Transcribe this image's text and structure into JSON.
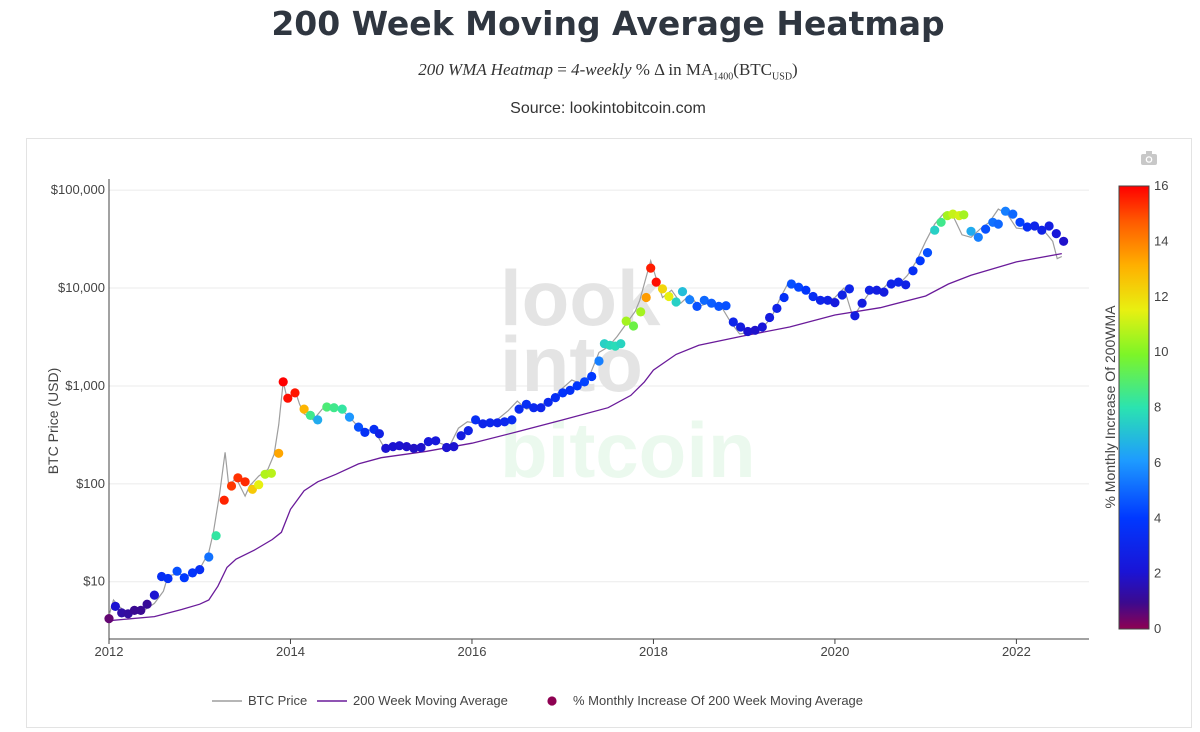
{
  "page": {
    "title": "200 Week Moving Average Heatmap",
    "formula": {
      "lhs": "200 WMA Heatmap",
      "eq": " = ",
      "rhs_italic": "4-weekly",
      "rhs_rest": " % Δ in MA",
      "sub1": "1400",
      "paren": "(BTC",
      "sub2": "USD",
      "close": ")"
    },
    "source": "Source: lookintobitcoin.com"
  },
  "toolbar": {
    "camera_label": "camera"
  },
  "watermark": {
    "line1": "look",
    "line2": "into",
    "line3": "bitcoin"
  },
  "colors": {
    "price": "#9e9e9e",
    "wma": "#6a1b9a",
    "grid": "#ebebeb",
    "axis": "#444444",
    "title": "#2f3640"
  },
  "chart_data": {
    "type": "scatter",
    "yscale": "log",
    "xlim": [
      2012.0,
      2022.8
    ],
    "ylim": [
      2.6,
      130000
    ],
    "ylabel": "BTC Price (USD)",
    "colorbar_title": "% Monthly Increase Of 200WMA",
    "colorbar_range": [
      0,
      16
    ],
    "colorbar_ticks": [
      "0",
      "2",
      "4",
      "6",
      "8",
      "10",
      "12",
      "14",
      "16"
    ],
    "x_ticks": [
      {
        "v": 2012,
        "label": "2012"
      },
      {
        "v": 2014,
        "label": "2014"
      },
      {
        "v": 2016,
        "label": "2016"
      },
      {
        "v": 2018,
        "label": "2018"
      },
      {
        "v": 2020,
        "label": "2020"
      },
      {
        "v": 2022,
        "label": "2022"
      }
    ],
    "y_ticks": [
      {
        "v": 10,
        "label": "$10"
      },
      {
        "v": 100,
        "label": "$100"
      },
      {
        "v": 1000,
        "label": "$1,000"
      },
      {
        "v": 10000,
        "label": "$10,000"
      },
      {
        "v": 100000,
        "label": "$100,000"
      }
    ],
    "legend": [
      {
        "name": "BTC Price",
        "kind": "line-gray"
      },
      {
        "name": "200 Week Moving Average",
        "kind": "line-purple"
      },
      {
        "name": "% Monthly Increase Of 200 Week Moving Average",
        "kind": "marker"
      }
    ],
    "btc_price": [
      [
        2012.0,
        4.5
      ],
      [
        2012.05,
        6.5
      ],
      [
        2012.1,
        5.7
      ],
      [
        2012.2,
        4.8
      ],
      [
        2012.3,
        4.9
      ],
      [
        2012.4,
        5.2
      ],
      [
        2012.5,
        6.0
      ],
      [
        2012.6,
        8.0
      ],
      [
        2012.65,
        11.5
      ],
      [
        2012.75,
        12
      ],
      [
        2012.9,
        11.5
      ],
      [
        2013.0,
        13.5
      ],
      [
        2013.1,
        20
      ],
      [
        2013.15,
        32
      ],
      [
        2013.22,
        80
      ],
      [
        2013.28,
        210
      ],
      [
        2013.32,
        95
      ],
      [
        2013.4,
        115
      ],
      [
        2013.5,
        75
      ],
      [
        2013.55,
        95
      ],
      [
        2013.65,
        120
      ],
      [
        2013.75,
        140
      ],
      [
        2013.82,
        200
      ],
      [
        2013.87,
        400
      ],
      [
        2013.92,
        1100
      ],
      [
        2013.97,
        700
      ],
      [
        2014.05,
        900
      ],
      [
        2014.1,
        650
      ],
      [
        2014.15,
        520
      ],
      [
        2014.25,
        450
      ],
      [
        2014.35,
        580
      ],
      [
        2014.45,
        630
      ],
      [
        2014.55,
        580
      ],
      [
        2014.65,
        480
      ],
      [
        2014.75,
        380
      ],
      [
        2014.85,
        360
      ],
      [
        2014.95,
        320
      ],
      [
        2015.05,
        220
      ],
      [
        2015.15,
        250
      ],
      [
        2015.3,
        240
      ],
      [
        2015.45,
        250
      ],
      [
        2015.6,
        270
      ],
      [
        2015.75,
        240
      ],
      [
        2015.85,
        370
      ],
      [
        2015.95,
        430
      ],
      [
        2016.1,
        410
      ],
      [
        2016.25,
        430
      ],
      [
        2016.4,
        560
      ],
      [
        2016.5,
        700
      ],
      [
        2016.6,
        580
      ],
      [
        2016.75,
        630
      ],
      [
        2016.9,
        760
      ],
      [
        2017.0,
        950
      ],
      [
        2017.1,
        1150
      ],
      [
        2017.2,
        1050
      ],
      [
        2017.3,
        1300
      ],
      [
        2017.4,
        2200
      ],
      [
        2017.5,
        2500
      ],
      [
        2017.6,
        3200
      ],
      [
        2017.7,
        4300
      ],
      [
        2017.8,
        5800
      ],
      [
        2017.85,
        7500
      ],
      [
        2017.92,
        13000
      ],
      [
        2017.97,
        19000
      ],
      [
        2018.05,
        11000
      ],
      [
        2018.1,
        8000
      ],
      [
        2018.2,
        9500
      ],
      [
        2018.3,
        7000
      ],
      [
        2018.4,
        8500
      ],
      [
        2018.5,
        6500
      ],
      [
        2018.6,
        7000
      ],
      [
        2018.75,
        6400
      ],
      [
        2018.85,
        4500
      ],
      [
        2018.95,
        3400
      ],
      [
        2019.05,
        3500
      ],
      [
        2019.2,
        3900
      ],
      [
        2019.3,
        5000
      ],
      [
        2019.4,
        8000
      ],
      [
        2019.5,
        12000
      ],
      [
        2019.6,
        10000
      ],
      [
        2019.7,
        9000
      ],
      [
        2019.8,
        8000
      ],
      [
        2019.9,
        7200
      ],
      [
        2020.0,
        8000
      ],
      [
        2020.1,
        10000
      ],
      [
        2020.2,
        5000
      ],
      [
        2020.3,
        7000
      ],
      [
        2020.4,
        9500
      ],
      [
        2020.5,
        9200
      ],
      [
        2020.6,
        11500
      ],
      [
        2020.7,
        10800
      ],
      [
        2020.8,
        13500
      ],
      [
        2020.9,
        19000
      ],
      [
        2021.0,
        30000
      ],
      [
        2021.1,
        45000
      ],
      [
        2021.2,
        58000
      ],
      [
        2021.3,
        55000
      ],
      [
        2021.4,
        35000
      ],
      [
        2021.5,
        33000
      ],
      [
        2021.6,
        40000
      ],
      [
        2021.7,
        47000
      ],
      [
        2021.8,
        64000
      ],
      [
        2021.9,
        57000
      ],
      [
        2022.0,
        41000
      ],
      [
        2022.1,
        40000
      ],
      [
        2022.2,
        44000
      ],
      [
        2022.3,
        39000
      ],
      [
        2022.4,
        30000
      ],
      [
        2022.45,
        20000
      ],
      [
        2022.5,
        21000
      ]
    ],
    "wma_200": [
      [
        2012.0,
        4.0
      ],
      [
        2012.5,
        4.4
      ],
      [
        2012.8,
        5.2
      ],
      [
        2013.0,
        5.9
      ],
      [
        2013.1,
        6.5
      ],
      [
        2013.2,
        9
      ],
      [
        2013.3,
        14
      ],
      [
        2013.4,
        17
      ],
      [
        2013.6,
        21
      ],
      [
        2013.8,
        27
      ],
      [
        2013.9,
        32
      ],
      [
        2014.0,
        55
      ],
      [
        2014.15,
        85
      ],
      [
        2014.3,
        105
      ],
      [
        2014.5,
        125
      ],
      [
        2014.75,
        160
      ],
      [
        2015.0,
        185
      ],
      [
        2015.5,
        215
      ],
      [
        2016.0,
        260
      ],
      [
        2016.5,
        340
      ],
      [
        2017.0,
        450
      ],
      [
        2017.5,
        600
      ],
      [
        2017.75,
        800
      ],
      [
        2017.9,
        1100
      ],
      [
        2018.0,
        1450
      ],
      [
        2018.25,
        2100
      ],
      [
        2018.5,
        2600
      ],
      [
        2019.0,
        3250
      ],
      [
        2019.5,
        4000
      ],
      [
        2020.0,
        5300
      ],
      [
        2020.5,
        6300
      ],
      [
        2021.0,
        8300
      ],
      [
        2021.25,
        11000
      ],
      [
        2021.5,
        13500
      ],
      [
        2022.0,
        18500
      ],
      [
        2022.5,
        22500
      ]
    ],
    "heat_points": [
      [
        2012.0,
        4.2,
        0.5
      ],
      [
        2012.07,
        5.6,
        2.0
      ],
      [
        2012.14,
        4.8,
        1.3
      ],
      [
        2012.21,
        4.7,
        1.2
      ],
      [
        2012.28,
        5.1,
        1.0
      ],
      [
        2012.35,
        5.1,
        1.0
      ],
      [
        2012.42,
        5.9,
        1.1
      ],
      [
        2012.5,
        7.3,
        2.0
      ],
      [
        2012.58,
        11.3,
        3.5
      ],
      [
        2012.65,
        10.8,
        3.6
      ],
      [
        2012.75,
        12.8,
        4.5
      ],
      [
        2012.83,
        11.0,
        4.0
      ],
      [
        2012.92,
        12.3,
        3.8
      ],
      [
        2013.0,
        13.3,
        3.5
      ],
      [
        2013.1,
        17.9,
        5.2
      ],
      [
        2013.18,
        29.5,
        8.2
      ],
      [
        2013.27,
        68,
        15.5
      ],
      [
        2013.35,
        95,
        15.2
      ],
      [
        2013.42,
        115,
        15.3
      ],
      [
        2013.5,
        105,
        15.4
      ],
      [
        2013.58,
        88,
        12.5
      ],
      [
        2013.65,
        98,
        11.5
      ],
      [
        2013.72,
        125,
        10.7
      ],
      [
        2013.79,
        128,
        10.8
      ],
      [
        2013.87,
        205,
        13.3
      ],
      [
        2013.92,
        1100,
        16.0
      ],
      [
        2013.97,
        750,
        15.8
      ],
      [
        2014.05,
        850,
        15.7
      ],
      [
        2014.15,
        580,
        13.0
      ],
      [
        2014.22,
        500,
        8.5
      ],
      [
        2014.3,
        450,
        6.5
      ],
      [
        2014.4,
        610,
        8.8
      ],
      [
        2014.48,
        600,
        8.5
      ],
      [
        2014.57,
        580,
        8.2
      ],
      [
        2014.65,
        480,
        6.0
      ],
      [
        2014.75,
        380,
        4.5
      ],
      [
        2014.82,
        335,
        3.6
      ],
      [
        2014.92,
        360,
        3.5
      ],
      [
        2014.98,
        325,
        2.8
      ],
      [
        2015.05,
        230,
        2.0
      ],
      [
        2015.13,
        240,
        2.0
      ],
      [
        2015.2,
        245,
        2.0
      ],
      [
        2015.28,
        240,
        1.9
      ],
      [
        2015.36,
        230,
        1.8
      ],
      [
        2015.44,
        235,
        1.9
      ],
      [
        2015.52,
        270,
        2.3
      ],
      [
        2015.6,
        275,
        2.3
      ],
      [
        2015.72,
        235,
        2.0
      ],
      [
        2015.8,
        240,
        2.0
      ],
      [
        2015.88,
        310,
        2.5
      ],
      [
        2015.96,
        350,
        2.8
      ],
      [
        2016.04,
        450,
        3.5
      ],
      [
        2016.12,
        410,
        3.0
      ],
      [
        2016.2,
        420,
        3.1
      ],
      [
        2016.28,
        420,
        3.0
      ],
      [
        2016.36,
        430,
        3.2
      ],
      [
        2016.44,
        450,
        3.4
      ],
      [
        2016.52,
        580,
        3.3
      ],
      [
        2016.6,
        650,
        3.5
      ],
      [
        2016.68,
        600,
        3.2
      ],
      [
        2016.76,
        600,
        3.0
      ],
      [
        2016.84,
        680,
        3.2
      ],
      [
        2016.92,
        760,
        3.5
      ],
      [
        2017.0,
        850,
        3.8
      ],
      [
        2017.08,
        900,
        3.6
      ],
      [
        2017.16,
        1000,
        3.9
      ],
      [
        2017.24,
        1100,
        4.2
      ],
      [
        2017.32,
        1250,
        4.0
      ],
      [
        2017.4,
        1800,
        5.5
      ],
      [
        2017.46,
        2700,
        7.5
      ],
      [
        2017.52,
        2600,
        7.7
      ],
      [
        2017.58,
        2550,
        7.8
      ],
      [
        2017.64,
        2700,
        7.6
      ],
      [
        2017.7,
        4600,
        10.5
      ],
      [
        2017.78,
        4100,
        9.5
      ],
      [
        2017.86,
        5700,
        10.5
      ],
      [
        2017.92,
        8000,
        13.5
      ],
      [
        2017.97,
        16000,
        15.6
      ],
      [
        2018.03,
        11500,
        15.8
      ],
      [
        2018.1,
        9800,
        12.2
      ],
      [
        2018.17,
        8200,
        11.5
      ],
      [
        2018.25,
        7200,
        7.5
      ],
      [
        2018.32,
        9200,
        7.0
      ],
      [
        2018.4,
        7600,
        5.5
      ],
      [
        2018.48,
        6500,
        4.5
      ],
      [
        2018.56,
        7500,
        5.0
      ],
      [
        2018.64,
        7000,
        4.8
      ],
      [
        2018.72,
        6500,
        4.6
      ],
      [
        2018.8,
        6600,
        4.5
      ],
      [
        2018.88,
        4500,
        3.0
      ],
      [
        2018.96,
        4000,
        2.5
      ],
      [
        2019.04,
        3600,
        2.0
      ],
      [
        2019.12,
        3700,
        1.9
      ],
      [
        2019.2,
        4000,
        2.2
      ],
      [
        2019.28,
        5000,
        2.5
      ],
      [
        2019.36,
        6200,
        2.9
      ],
      [
        2019.44,
        8000,
        3.6
      ],
      [
        2019.52,
        11000,
        4.5
      ],
      [
        2019.6,
        10200,
        4.3
      ],
      [
        2019.68,
        9500,
        3.9
      ],
      [
        2019.76,
        8200,
        3.5
      ],
      [
        2019.84,
        7500,
        3.0
      ],
      [
        2019.92,
        7500,
        2.8
      ],
      [
        2020.0,
        7100,
        2.4
      ],
      [
        2020.08,
        8500,
        2.8
      ],
      [
        2020.16,
        9800,
        3.0
      ],
      [
        2020.22,
        5200,
        2.5
      ],
      [
        2020.3,
        7000,
        2.5
      ],
      [
        2020.38,
        9500,
        2.8
      ],
      [
        2020.46,
        9500,
        2.6
      ],
      [
        2020.54,
        9100,
        2.5
      ],
      [
        2020.62,
        11000,
        2.9
      ],
      [
        2020.7,
        11500,
        3.0
      ],
      [
        2020.78,
        10800,
        2.8
      ],
      [
        2020.86,
        15000,
        3.5
      ],
      [
        2020.94,
        19000,
        4.0
      ],
      [
        2021.02,
        23000,
        4.5
      ],
      [
        2021.1,
        39000,
        7.5
      ],
      [
        2021.17,
        47000,
        8.5
      ],
      [
        2021.24,
        55000,
        10.5
      ],
      [
        2021.3,
        57000,
        11.0
      ],
      [
        2021.37,
        55000,
        11.2
      ],
      [
        2021.42,
        56000,
        10.5
      ],
      [
        2021.5,
        38000,
        6.5
      ],
      [
        2021.58,
        33000,
        5.5
      ],
      [
        2021.66,
        40000,
        4.5
      ],
      [
        2021.74,
        47000,
        5.2
      ],
      [
        2021.8,
        45000,
        5.0
      ],
      [
        2021.88,
        61000,
        5.5
      ],
      [
        2021.96,
        57000,
        5.0
      ],
      [
        2022.04,
        47000,
        4.2
      ],
      [
        2022.12,
        42000,
        3.5
      ],
      [
        2022.2,
        43000,
        3.0
      ],
      [
        2022.28,
        39000,
        2.8
      ],
      [
        2022.36,
        43000,
        2.6
      ],
      [
        2022.44,
        36000,
        2.2
      ],
      [
        2022.52,
        30000,
        1.9
      ]
    ]
  }
}
